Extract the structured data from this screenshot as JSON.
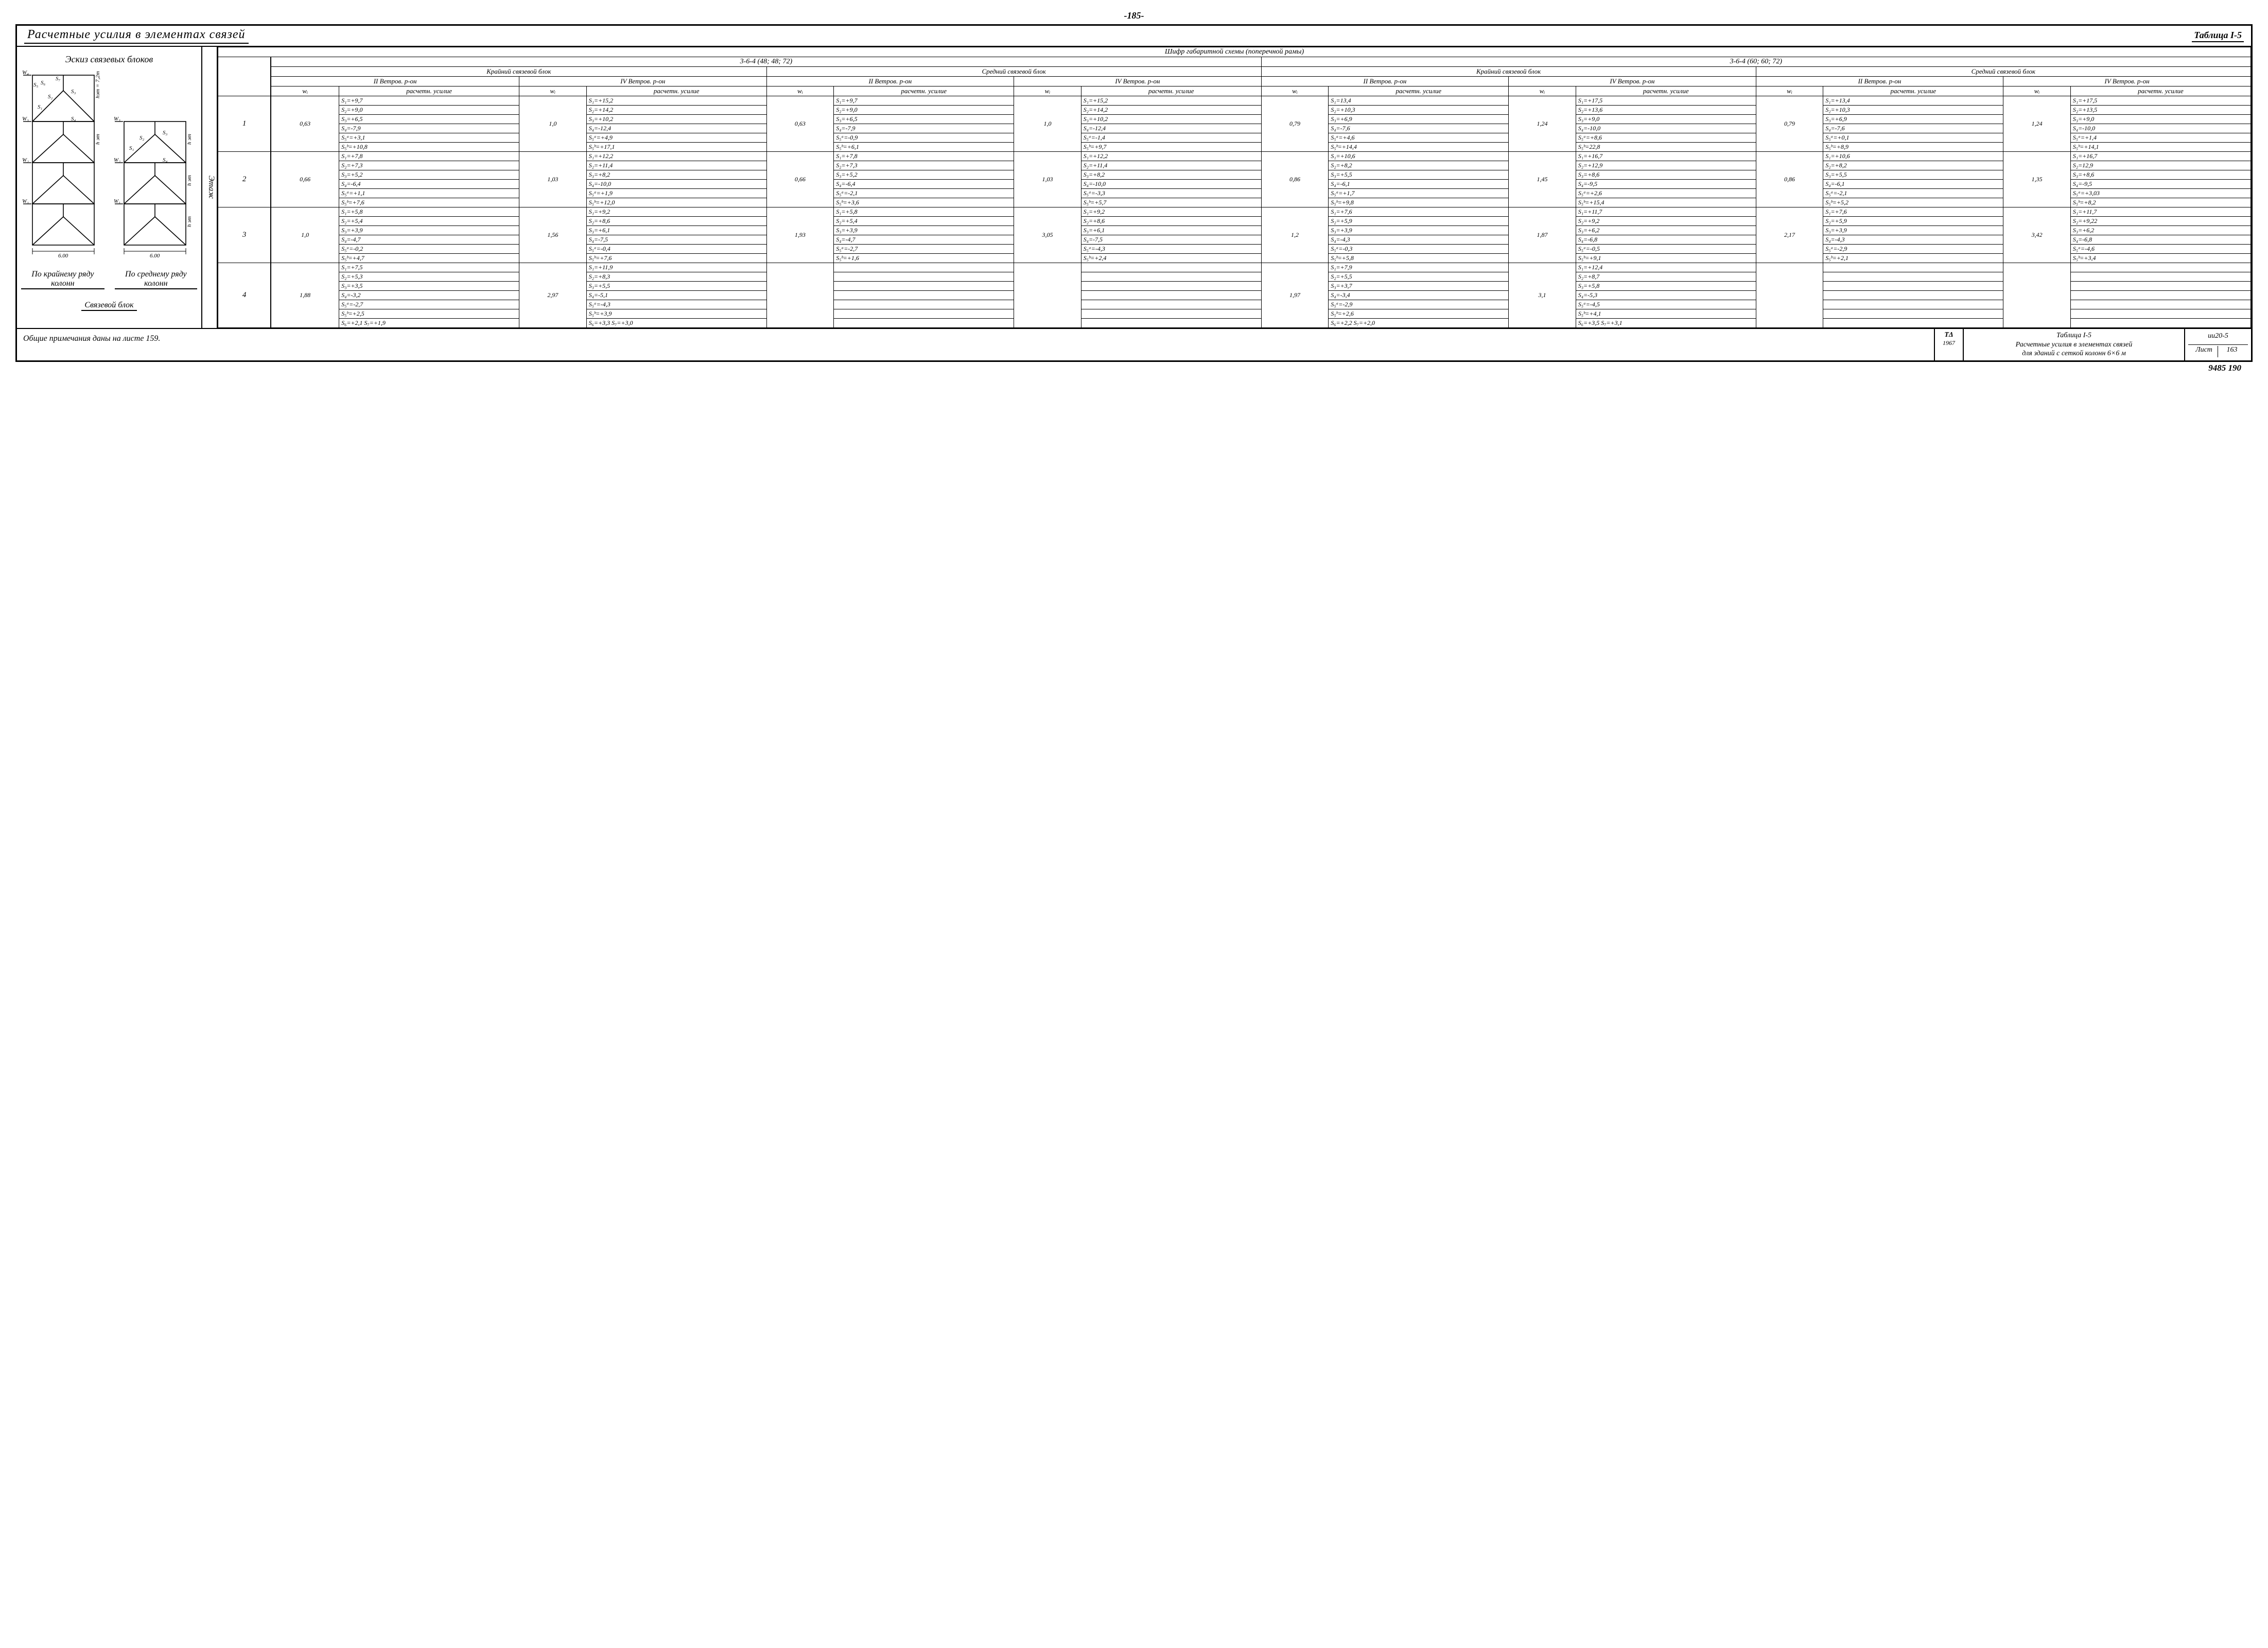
{
  "page_number": "-185-",
  "title": "Расчетные усилия в элементах связей",
  "table_no": "Таблица I-5",
  "left_heading": "Эскиз связевых блоков",
  "etazh_label": "Этаж",
  "header": {
    "shifr": "Шифр габаритной схемы (поперечной рамы)",
    "scheme_a": "3-6-4 (48; 48; 72)",
    "scheme_b": "3-6-4 (60; 60; 72)",
    "block_outer": "Крайний связевой блок",
    "block_mid": "Средний связевой блок",
    "wind2": "II Ветров. р-он",
    "wind4": "IV Ветров. р-он",
    "wi": "wᵢ",
    "force": "расчетн. усилие"
  },
  "sketch_labels": {
    "w1": "W₁",
    "w2": "W₂",
    "w3": "W₃",
    "w4": "W₄",
    "s1": "S₁",
    "s2": "S₂",
    "s3": "S₃",
    "s4": "S₄",
    "s5": "S₅",
    "s6": "S₆",
    "s7": "S₇",
    "span": "6.00",
    "h_et": "h эт",
    "h_верх": "hэт = 7,2m"
  },
  "captions": {
    "outer": "По крайнему ряду колонн",
    "mid": "По среднему ряду колонн",
    "block": "Связевой блок"
  },
  "rows": [
    {
      "floor": "1",
      "n": 6,
      "wi": [
        "0,63",
        "1,0",
        "0,63",
        "1,0",
        "0,79",
        "1,24",
        "0,79",
        "1,24"
      ],
      "cells": [
        [
          "S₁=+9,7",
          "S₁=+15,2",
          "S₁=+9,7",
          "S₁=+15,2",
          "S₁=13,4",
          "S₁=+17,5",
          "S₁=+13,4",
          "S₁=+17,5"
        ],
        [
          "S₂=+9,0",
          "S₂=+14,2",
          "S₂=+9,0",
          "S₂=+14,2",
          "S₂=+10,3",
          "S₂=+13,6",
          "S₂=+10,3",
          "S₂=+13,5"
        ],
        [
          "S₃=+6,5",
          "S₃=+10,2",
          "S₃=+6,5",
          "S₃=+10,2",
          "S₃=+6,9",
          "S₃=+9,0",
          "S₃=+6,9",
          "S₃=+9,0"
        ],
        [
          "S₄=-7,9",
          "S₄=-12,4",
          "S₄=-7,9",
          "S₄=-12,4",
          "S₄=-7,6",
          "S₄=-10,0",
          "S₄=-7,6",
          "S₄=-10,0"
        ],
        [
          "S₅ᵃ=+3,1",
          "S₅ᵃ=+4,9",
          "S₅ᵃ=-0,9",
          "S₅ᵃ=-1,4",
          "S₅ᵃ=+4,6",
          "S₅ᵃ=+8,6",
          "S₅ᵃ=+0,1",
          "S₅ᵃ=+1,4"
        ],
        [
          "S₅ᵇ=+10,8",
          "S₅ᵇ=+17,1",
          "S₅ᵇ=+6,1",
          "S₅ᵇ=+9,7",
          "S₅ᵇ=+14,4",
          "S₅ᵇ=22,8",
          "S₅ᵇ=+8,9",
          "S₅ᵇ=+14,1"
        ]
      ]
    },
    {
      "floor": "2",
      "n": 6,
      "wi": [
        "0,66",
        "1,03",
        "0,66",
        "1,03",
        "0,86",
        "1,45",
        "0,86",
        "1,35"
      ],
      "cells": [
        [
          "S₁=+7,8",
          "S₁=+12,2",
          "S₁=+7,8",
          "S₁=+12,2",
          "S₁=+10,6",
          "S₁=+16,7",
          "S₁=+10,6",
          "S₁=+16,7"
        ],
        [
          "S₂=+7,3",
          "S₂=+11,4",
          "S₂=+7,3",
          "S₂=+11,4",
          "S₂=+8,2",
          "S₂=+12,9",
          "S₂=+8,2",
          "S₂=12,9"
        ],
        [
          "S₃=+5,2",
          "S₃=+8,2",
          "S₃=+5,2",
          "S₃=+8,2",
          "S₃=+5,5",
          "S₃=+8,6",
          "S₃=+5,5",
          "S₃=+8,6"
        ],
        [
          "S₄=-6,4",
          "S₄=-10,0",
          "S₄=-6,4",
          "S₄=-10,0",
          "S₄=-6,1",
          "S₄=-9,5",
          "S₄=-6,1",
          "S₄=-9,5"
        ],
        [
          "S₅ᵃ=+1,1",
          "S₅ᵃ=+1,9",
          "S₅ᵃ=-2,1",
          "S₅ᵃ=-3,3",
          "S₅ᵃ=+1,7",
          "S₅ᵃ=+2,6",
          "S₅ᵃ=-2,1",
          "S₅ᵃ=+3,03"
        ],
        [
          "S₅ᵇ=+7,6",
          "S₅ᵇ=+12,0",
          "S₅ᵇ=+3,6",
          "S₅ᵇ=+5,7",
          "S₅ᵇ=+9,8",
          "S₅ᵇ=+15,4",
          "S₅ᵇ=+5,2",
          "S₅ᵇ=+8,2"
        ]
      ]
    },
    {
      "floor": "3",
      "n": 6,
      "wi": [
        "1,0",
        "1,56",
        "1,93",
        "3,05",
        "1,2",
        "1,87",
        "2,17",
        "3,42"
      ],
      "cells": [
        [
          "S₁=+5,8",
          "S₁=+9,2",
          "S₁=+5,8",
          "S₁=+9,2",
          "S₁=+7,6",
          "S₁=+11,7",
          "S₁=+7,6",
          "S₁=+11,7"
        ],
        [
          "S₂=+5,4",
          "S₂=+8,6",
          "S₂=+5,4",
          "S₂=+8,6",
          "S₂=+5,9",
          "S₂=+9,2",
          "S₂=+5,9",
          "S₂=+9,22"
        ],
        [
          "S₃=+3,9",
          "S₃=+6,1",
          "S₃=+3,9",
          "S₃=+6,1",
          "S₃=+3,9",
          "S₃=+6,2",
          "S₃=+3,9",
          "S₃=+6,2"
        ],
        [
          "S₄=-4,7",
          "S₄=-7,5",
          "S₄=-4,7",
          "S₄=-7,5",
          "S₄=-4,3",
          "S₄=-6,8",
          "S₄=-4,3",
          "S₄=-6,8"
        ],
        [
          "S₅ᵃ=-0,2",
          "S₅ᵃ=-0,4",
          "S₅ᵃ=-2,7",
          "S₅ᵃ=-4,3",
          "S₅ᵃ=-0,3",
          "S₅ᵃ=-0,5",
          "S₅ᵃ=-2,9",
          "S₅ᵃ=-4,6"
        ],
        [
          "S₅ᵇ=+4,7",
          "S₅ᵇ=+7,6",
          "S₅ᵇ=+1,6",
          "S₅ᵇ=+2,4",
          "S₅ᵇ=+5,8",
          "S₅ᵇ=+9,1",
          "S₅ᵇ=+2,1",
          "S₅ᵇ=+3,4"
        ]
      ]
    },
    {
      "floor": "4",
      "n": 7,
      "wi": [
        "1,88",
        "2,97",
        "",
        "",
        "1,97",
        "3,1",
        "",
        ""
      ],
      "cells": [
        [
          "S₁=+7,5",
          "S₁=+11,9",
          "",
          "",
          "S₁=+7,9",
          "S₁=+12,4",
          "",
          ""
        ],
        [
          "S₂=+5,3",
          "S₂=+8,3",
          "",
          "",
          "S₂=+5,5",
          "S₂=+8,7",
          "",
          ""
        ],
        [
          "S₃=+3,5",
          "S₃=+5,5",
          "",
          "",
          "S₃=+3,7",
          "S₃=+5,8",
          "",
          ""
        ],
        [
          "S₄=-3,2",
          "S₄=-5,1",
          "",
          "",
          "S₄=-3,4",
          "S₄=-5,3",
          "",
          ""
        ],
        [
          "S₅ᵃ=-2,7",
          "S₅ᵃ=-4,3",
          "",
          "",
          "S₅ᵃ=-2,9",
          "S₅ᵃ=-4,5",
          "",
          ""
        ],
        [
          "S₅ᵇ=+2,5",
          "S₅ᵇ=+3,9",
          "",
          "",
          "S₅ᵇ=+2,6",
          "S₅ᵇ=+4,1",
          "",
          ""
        ],
        [
          "S₆=+2,1  S₇=+1,9",
          "S₆=+3,3  S₇=+3,0",
          "",
          "",
          "S₆=+2,2  S₇=+2,0",
          "S₆=+3,5  S₇=+3,1",
          "",
          ""
        ]
      ]
    }
  ],
  "footer": {
    "note": "Общие примечания даны на листе 159.",
    "stamp": "ТΔ",
    "year": "1967",
    "ftitle1": "Таблица I-5",
    "ftitle2": "Расчетные усилия в элементах связей",
    "ftitle3": "для зданий с сеткой колонн 6×6 м",
    "code": "ии20-5",
    "sheet_lbl": "Лист",
    "sheet_no": "163"
  },
  "tail": "9485 190"
}
